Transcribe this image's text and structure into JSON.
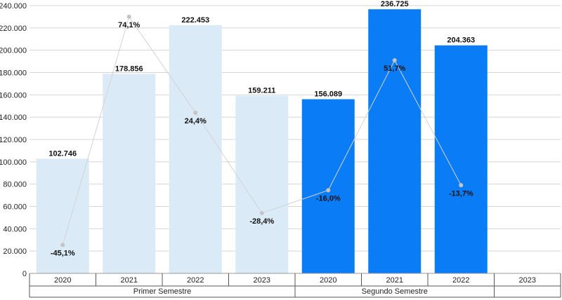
{
  "chart_data": {
    "type": "bar",
    "title": "",
    "xlabel": "",
    "ylabel": "",
    "ylim": [
      0,
      240000
    ],
    "yticks": [
      "0",
      "20.000",
      "40.000",
      "60.000",
      "80.000",
      "100.000",
      "120.000",
      "140.000",
      "160.000",
      "180.000",
      "200.000",
      "220.000",
      "240.000"
    ],
    "grid": true,
    "groups": [
      "Primer Semestre",
      "Segundo Semestre"
    ],
    "categories": [
      "2020",
      "2021",
      "2022",
      "2023",
      "2020",
      "2021",
      "2022",
      "2023"
    ],
    "series": [
      {
        "values": [
          102746,
          178856,
          222453,
          159211,
          156089,
          236725,
          204363,
          null
        ],
        "labels": [
          "102.746",
          "178.856",
          "222.453",
          "159.211",
          "156.089",
          "236.725",
          "204.363",
          ""
        ],
        "colors": [
          "#dbeaf7",
          "#dbeaf7",
          "#dbeaf7",
          "#dbeaf7",
          "#0a7cf5",
          "#0a7cf5",
          "#0a7cf5",
          "#0a7cf5"
        ]
      },
      {
        "type": "line",
        "values": [
          -45.1,
          74.1,
          24.4,
          -28.4,
          -16.0,
          51.7,
          -13.7,
          null
        ],
        "labels": [
          "-45,1%",
          "74,1%",
          "24,4%",
          "-28,4%",
          "-16,0%",
          "51,7%",
          "-13,7%",
          ""
        ],
        "plot_y": [
          25500,
          230000,
          144000,
          54000,
          74500,
          191000,
          79000,
          null
        ],
        "color": "#d3d3d3"
      }
    ]
  }
}
